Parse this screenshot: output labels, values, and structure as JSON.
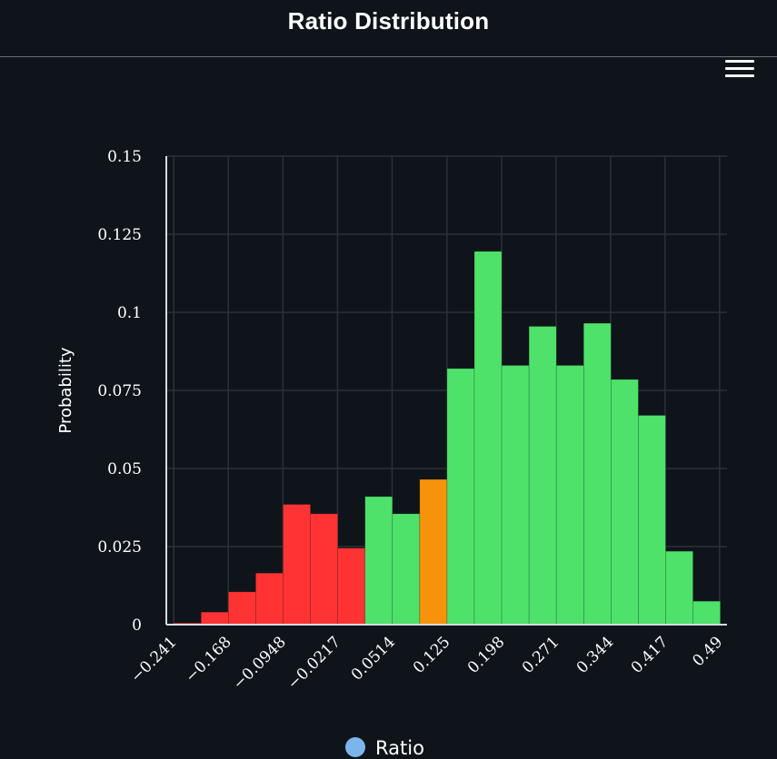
{
  "header": {
    "title": "Ratio Distribution"
  },
  "menu": {
    "icon": "hamburger-menu-icon"
  },
  "colors": {
    "background": "#0f141a",
    "negative": "#ff3333",
    "positive": "#4ee26a",
    "highlight": "#f7930b",
    "grid": "#2b3138",
    "axis": "#d6dbe0",
    "legend_marker": "#7cb5ec"
  },
  "chart_data": {
    "type": "bar",
    "ylabel": "Probability",
    "xlabel": "",
    "ylim": [
      0,
      0.15
    ],
    "yticks": [
      "0",
      "0.025",
      "0.05",
      "0.075",
      "0.1",
      "0.125",
      "0.15"
    ],
    "xticks": [
      "−0.241",
      "−0.168",
      "−0.0948",
      "−0.0217",
      "0.0514",
      "0.125",
      "0.198",
      "0.271",
      "0.344",
      "0.417",
      "0.49"
    ],
    "xlim": [
      -0.251,
      0.5
    ],
    "bin_width": 0.0366,
    "grid": true,
    "legend": {
      "position": "bottom-center",
      "entries": [
        "Ratio"
      ]
    },
    "series": [
      {
        "name": "Ratio",
        "bins": [
          {
            "x0": -0.241,
            "value": 0.0005,
            "color": "#ff3333"
          },
          {
            "x0": -0.2044,
            "value": 0.004,
            "color": "#ff3333"
          },
          {
            "x0": -0.1678,
            "value": 0.0105,
            "color": "#ff3333"
          },
          {
            "x0": -0.1312,
            "value": 0.0165,
            "color": "#ff3333"
          },
          {
            "x0": -0.0946,
            "value": 0.0385,
            "color": "#ff3333"
          },
          {
            "x0": -0.058,
            "value": 0.0355,
            "color": "#ff3333"
          },
          {
            "x0": -0.0214,
            "value": 0.0245,
            "color": "#ff3333"
          },
          {
            "x0": 0.0152,
            "value": 0.041,
            "color": "#4ee26a"
          },
          {
            "x0": 0.0518,
            "value": 0.0355,
            "color": "#4ee26a"
          },
          {
            "x0": 0.0884,
            "value": 0.0465,
            "color": "#f7930b"
          },
          {
            "x0": 0.125,
            "value": 0.082,
            "color": "#4ee26a"
          },
          {
            "x0": 0.1616,
            "value": 0.1195,
            "color": "#4ee26a"
          },
          {
            "x0": 0.1982,
            "value": 0.083,
            "color": "#4ee26a"
          },
          {
            "x0": 0.2348,
            "value": 0.0955,
            "color": "#4ee26a"
          },
          {
            "x0": 0.2714,
            "value": 0.083,
            "color": "#4ee26a"
          },
          {
            "x0": 0.308,
            "value": 0.0965,
            "color": "#4ee26a"
          },
          {
            "x0": 0.3446,
            "value": 0.0785,
            "color": "#4ee26a"
          },
          {
            "x0": 0.3812,
            "value": 0.067,
            "color": "#4ee26a"
          },
          {
            "x0": 0.4178,
            "value": 0.0235,
            "color": "#4ee26a"
          },
          {
            "x0": 0.4544,
            "value": 0.0075,
            "color": "#4ee26a"
          }
        ]
      }
    ]
  }
}
